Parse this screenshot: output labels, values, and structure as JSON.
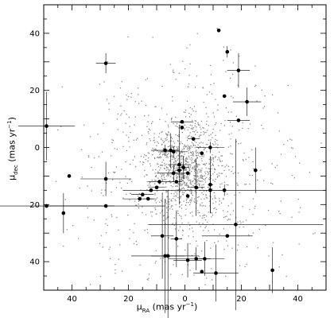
{
  "chart_data": {
    "type": "scatter",
    "xlabel": {
      "symbol": "μ",
      "sub": "RA",
      "units": " (mas yr",
      "sup": "−1",
      "close": ")"
    },
    "ylabel": {
      "symbol": "μ",
      "sub": "dec",
      "units": " (mas yr",
      "sup": "−1",
      "close": ")"
    },
    "x_axis_direction": "reversed",
    "xlim": [
      50,
      -50
    ],
    "ylim": [
      -50,
      50
    ],
    "x_ticks": [
      {
        "value": 40,
        "label": "40"
      },
      {
        "value": 20,
        "label": "20"
      },
      {
        "value": 0,
        "label": "0"
      },
      {
        "value": -20,
        "label": "20"
      },
      {
        "value": -40,
        "label": "40"
      }
    ],
    "y_ticks": [
      {
        "value": 40,
        "label": "40"
      },
      {
        "value": 20,
        "label": "20"
      },
      {
        "value": 0,
        "label": "0"
      },
      {
        "value": -20,
        "label": "20"
      },
      {
        "value": -40,
        "label": "40"
      }
    ],
    "background_field": {
      "count": 1500,
      "center": [
        0,
        -8
      ],
      "core_sigma": [
        6,
        8
      ],
      "halo_sigma": [
        18,
        20
      ],
      "core_fraction": 0.55,
      "color": "#8c8c8c"
    },
    "measured_points": [
      {
        "x": 49,
        "y": 7.5,
        "xerr": 10,
        "yerr": 12
      },
      {
        "x": 49,
        "y": -20.5,
        "xerr": 24,
        "yerr": 0
      },
      {
        "x": 43,
        "y": -23,
        "xerr": 0,
        "yerr": 7
      },
      {
        "x": 41,
        "y": -10,
        "xerr": 0,
        "yerr": 0
      },
      {
        "x": 28,
        "y": 29.5,
        "xerr": 3.5,
        "yerr": 3.5
      },
      {
        "x": 28,
        "y": -11,
        "xerr": 9,
        "yerr": 6
      },
      {
        "x": 28,
        "y": -20.5,
        "xerr": 21,
        "yerr": 0
      },
      {
        "x": 16,
        "y": -18,
        "xerr": 6,
        "yerr": 0
      },
      {
        "x": 15,
        "y": -16.5,
        "xerr": 4,
        "yerr": 0
      },
      {
        "x": 13,
        "y": -18,
        "xerr": 2,
        "yerr": 0
      },
      {
        "x": 12,
        "y": -15,
        "xerr": 3,
        "yerr": 0
      },
      {
        "x": 10,
        "y": -14,
        "xerr": 3,
        "yerr": 0
      },
      {
        "x": 9,
        "y": -12,
        "xerr": 4,
        "yerr": 0
      },
      {
        "x": 8,
        "y": -31,
        "xerr": 4,
        "yerr": 15
      },
      {
        "x": 7,
        "y": -38,
        "xerr": 12,
        "yerr": 20
      },
      {
        "x": 7,
        "y": -1,
        "xerr": 5,
        "yerr": 2
      },
      {
        "x": 6,
        "y": -38,
        "xerr": 6,
        "yerr": 23
      },
      {
        "x": 5,
        "y": -1,
        "xerr": 3,
        "yerr": 6
      },
      {
        "x": 4,
        "y": -1.5,
        "xerr": 5,
        "yerr": 2
      },
      {
        "x": 4,
        "y": -9,
        "xerr": 6,
        "yerr": 3
      },
      {
        "x": 3,
        "y": -12,
        "xerr": 2,
        "yerr": 0
      },
      {
        "x": 3,
        "y": -32,
        "xerr": 2,
        "yerr": 10
      },
      {
        "x": 2,
        "y": -8,
        "xerr": 1,
        "yerr": 0
      },
      {
        "x": 2,
        "y": -6,
        "xerr": 4,
        "yerr": 14
      },
      {
        "x": 1,
        "y": 7,
        "xerr": 0,
        "yerr": 0
      },
      {
        "x": 1,
        "y": 9,
        "xerr": 4,
        "yerr": 0
      },
      {
        "x": 0.5,
        "y": -7,
        "xerr": 2,
        "yerr": 4
      },
      {
        "x": -1,
        "y": -9,
        "xerr": 0,
        "yerr": 0
      },
      {
        "x": -1,
        "y": -17,
        "xerr": 0,
        "yerr": 0
      },
      {
        "x": -1,
        "y": -39.5,
        "xerr": 5,
        "yerr": 6
      },
      {
        "x": -3,
        "y": 3,
        "xerr": 2,
        "yerr": 0
      },
      {
        "x": -4,
        "y": -14,
        "xerr": 3,
        "yerr": 10
      },
      {
        "x": -4,
        "y": -39,
        "xerr": 10,
        "yerr": 4
      },
      {
        "x": -6,
        "y": -2,
        "xerr": 0,
        "yerr": 0
      },
      {
        "x": -6,
        "y": -43.5,
        "xerr": 0,
        "yerr": 0
      },
      {
        "x": -7,
        "y": -39,
        "xerr": 2,
        "yerr": 6
      },
      {
        "x": -9,
        "y": 0,
        "xerr": 5,
        "yerr": 2
      },
      {
        "x": -9,
        "y": -15,
        "xerr": 4,
        "yerr": 8
      },
      {
        "x": -9,
        "y": -13,
        "xerr": 1,
        "yerr": 10
      },
      {
        "x": -11,
        "y": -44,
        "xerr": 8,
        "yerr": 10
      },
      {
        "x": -12,
        "y": 41,
        "xerr": 0,
        "yerr": 0
      },
      {
        "x": -14,
        "y": 18,
        "xerr": 0,
        "yerr": 0
      },
      {
        "x": -14,
        "y": -15,
        "xerr": 36,
        "yerr": 2
      },
      {
        "x": -15,
        "y": 33.5,
        "xerr": 0,
        "yerr": 2
      },
      {
        "x": -15,
        "y": -31,
        "xerr": 9,
        "yerr": 0
      },
      {
        "x": -18,
        "y": -27,
        "xerr": 31,
        "yerr": 30
      },
      {
        "x": -19,
        "y": 27,
        "xerr": 4,
        "yerr": 6
      },
      {
        "x": -19,
        "y": 9.5,
        "xerr": 4,
        "yerr": 0
      },
      {
        "x": -22,
        "y": 16,
        "xerr": 5,
        "yerr": 5
      },
      {
        "x": -25,
        "y": -8,
        "xerr": 0,
        "yerr": 8
      },
      {
        "x": -31,
        "y": -43,
        "xerr": 0,
        "yerr": 8
      }
    ]
  }
}
